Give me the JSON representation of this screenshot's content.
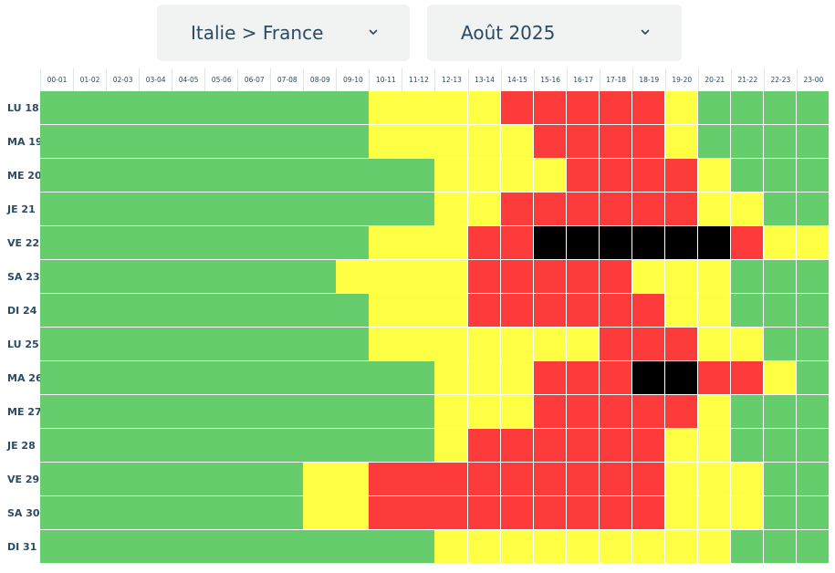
{
  "route_select": {
    "value": "Italie > France",
    "icon": "chevron-down-icon"
  },
  "month_select": {
    "value": "Août 2025",
    "icon": "chevron-down-icon"
  },
  "colors": {
    "green": "#66cd6c",
    "yellow": "#ffff44",
    "red": "#fd3b3b",
    "black": "#000000"
  },
  "hours": [
    "00-01",
    "01-02",
    "02-03",
    "03-04",
    "04-05",
    "05-06",
    "06-07",
    "07-08",
    "08-09",
    "09-10",
    "10-11",
    "11-12",
    "12-13",
    "13-14",
    "14-15",
    "15-16",
    "16-17",
    "17-18",
    "18-19",
    "19-20",
    "20-21",
    "21-22",
    "22-23",
    "23-00"
  ],
  "rows": [
    {
      "day": "LU 18",
      "levels": "GGGGGGGGGGYYYYRRRRRYGGGG"
    },
    {
      "day": "MA 19",
      "levels": "GGGGGGGGGGYYYYYRRRRYGGGG"
    },
    {
      "day": "ME 20",
      "levels": "GGGGGGGGGGGGYYYYRRRRYGGG"
    },
    {
      "day": "JE 21",
      "levels": "GGGGGGGGGGGGYYRRRRRRYYGG"
    },
    {
      "day": "VE 22",
      "levels": "GGGGGGGGGGYYYRRBBBBBBRYY"
    },
    {
      "day": "SA 23",
      "levels": "GGGGGGGGGYYYYRRRRRYYYGGG"
    },
    {
      "day": "DI 24",
      "levels": "GGGGGGGGGGYYYRRRRRRYYGGG"
    },
    {
      "day": "LU 25",
      "levels": "GGGGGGGGGGYYYYYYYRRRYYGG"
    },
    {
      "day": "MA 26",
      "levels": "GGGGGGGGGGGGYYYRRRBBRRYG"
    },
    {
      "day": "ME 27",
      "levels": "GGGGGGGGGGGGYYYRRRRRYGGG"
    },
    {
      "day": "JE 28",
      "levels": "GGGGGGGGGGGGYRRRRRRYYGGG"
    },
    {
      "day": "VE 29",
      "levels": "GGGGGGGGYYRRRRRRRRRYYYGG"
    },
    {
      "day": "SA 30",
      "levels": "GGGGGGGGYYRRRRRRRRRYYYGG"
    },
    {
      "day": "DI 31",
      "levels": "GGGGGGGGGGGGYYYYYYYYYGGG"
    }
  ]
}
